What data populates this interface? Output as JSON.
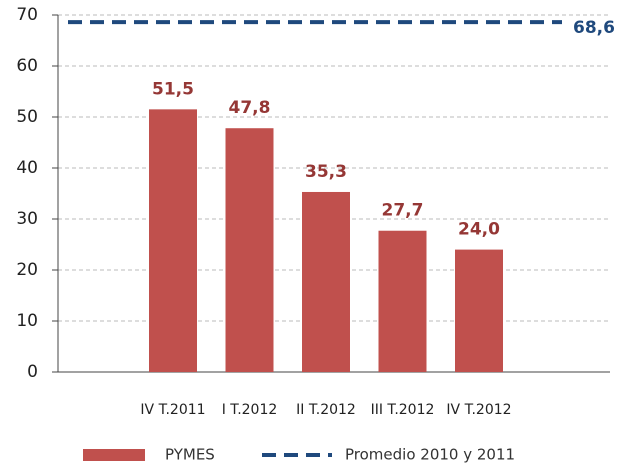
{
  "chart_data": {
    "type": "bar",
    "categories": [
      "IV T.2011",
      "I T.2012",
      "II T.2012",
      "III T.2012",
      "IV T.2012"
    ],
    "series": [
      {
        "name": "PYMES",
        "color": "#c0504d",
        "values": [
          51.5,
          47.8,
          35.3,
          27.7,
          24.0
        ],
        "value_labels": [
          "51,5",
          "47,8",
          "35,3",
          "27,7",
          "24,0"
        ]
      }
    ],
    "reference_line": {
      "name": "Promedio 2010 y 2011",
      "value": 68.6,
      "label": "68,6",
      "color": "#1f497d"
    },
    "ylim": [
      0,
      70
    ],
    "yticks": [
      0,
      10,
      20,
      30,
      40,
      50,
      60,
      70
    ],
    "grid": true,
    "legend": "bottom"
  }
}
